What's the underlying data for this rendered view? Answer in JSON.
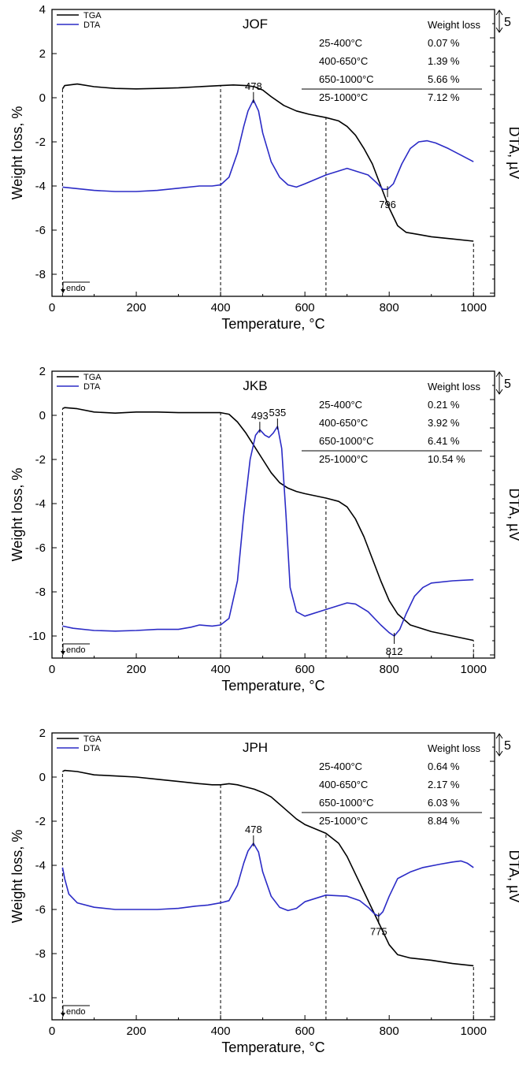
{
  "chart_data": [
    {
      "type": "line",
      "title": "JOF",
      "xlabel": "Temperature, °C",
      "ylabel": "Weight loss, %",
      "y2label": "DTA, µV",
      "scale_bar_label": "5",
      "endo_label": "endo",
      "xlim": [
        0,
        1050
      ],
      "ylim": [
        -9,
        4
      ],
      "x_ticks": [
        0,
        200,
        400,
        600,
        800,
        1000
      ],
      "y_ticks": [
        4,
        2,
        0,
        -2,
        -4,
        -6,
        -8
      ],
      "dashed_lines_x": [
        25,
        400,
        650,
        1000
      ],
      "legend": [
        {
          "label": "TGA",
          "color": "#000000"
        },
        {
          "label": "DTA",
          "color": "#2b2bc6"
        }
      ],
      "legend_position": "top-left",
      "table": {
        "header": "Weight loss",
        "rows": [
          {
            "range": "25-400°C",
            "value": "0.07 %"
          },
          {
            "range": "400-650°C",
            "value": "1.39 %"
          },
          {
            "range": "650-1000°C",
            "value": "5.66 %"
          },
          {
            "range": "25-1000°C",
            "value": "7.12 %"
          }
        ]
      },
      "peaks": [
        {
          "label": "478",
          "x": 478,
          "y": -0.1
        },
        {
          "label": "796",
          "x": 796,
          "y": -4.15
        }
      ],
      "series": [
        {
          "name": "TGA",
          "color": "#000000",
          "x": [
            25,
            30,
            60,
            100,
            150,
            200,
            250,
            300,
            350,
            400,
            430,
            460,
            480,
            500,
            520,
            550,
            580,
            610,
            650,
            680,
            700,
            720,
            740,
            760,
            780,
            800,
            820,
            840,
            870,
            900,
            950,
            1000
          ],
          "y": [
            0.4,
            0.55,
            0.62,
            0.5,
            0.42,
            0.4,
            0.42,
            0.45,
            0.5,
            0.55,
            0.58,
            0.55,
            0.5,
            0.35,
            0.05,
            -0.35,
            -0.6,
            -0.75,
            -0.9,
            -1.05,
            -1.3,
            -1.7,
            -2.3,
            -3.0,
            -4.0,
            -5.0,
            -5.8,
            -6.1,
            -6.2,
            -6.3,
            -6.4,
            -6.5
          ]
        },
        {
          "name": "DTA",
          "color": "#2b2bc6",
          "x": [
            25,
            50,
            100,
            150,
            200,
            250,
            300,
            350,
            380,
            400,
            420,
            440,
            455,
            465,
            478,
            490,
            500,
            520,
            540,
            560,
            580,
            600,
            650,
            700,
            750,
            770,
            785,
            796,
            810,
            830,
            850,
            870,
            890,
            910,
            940,
            970,
            1000
          ],
          "y": [
            -4.05,
            -4.1,
            -4.2,
            -4.25,
            -4.25,
            -4.2,
            -4.1,
            -4.0,
            -4.0,
            -3.95,
            -3.6,
            -2.5,
            -1.3,
            -0.6,
            -0.1,
            -0.6,
            -1.6,
            -2.9,
            -3.6,
            -3.95,
            -4.05,
            -3.9,
            -3.5,
            -3.2,
            -3.5,
            -3.85,
            -4.15,
            -4.15,
            -3.9,
            -3.0,
            -2.3,
            -2.0,
            -1.95,
            -2.05,
            -2.3,
            -2.6,
            -2.9
          ]
        }
      ]
    },
    {
      "type": "line",
      "title": "JKB",
      "xlabel": "Temperature, °C",
      "ylabel": "Weight loss, %",
      "y2label": "DTA, µV",
      "scale_bar_label": "5",
      "endo_label": "endo",
      "xlim": [
        0,
        1050
      ],
      "ylim": [
        -11,
        2
      ],
      "x_ticks": [
        0,
        200,
        400,
        600,
        800,
        1000
      ],
      "y_ticks": [
        2,
        0,
        -2,
        -4,
        -6,
        -8,
        -10
      ],
      "dashed_lines_x": [
        25,
        400,
        650,
        1000
      ],
      "legend": [
        {
          "label": "TGA",
          "color": "#000000"
        },
        {
          "label": "DTA",
          "color": "#2b2bc6"
        }
      ],
      "legend_position": "top-left",
      "table": {
        "header": "Weight loss",
        "rows": [
          {
            "range": "25-400°C",
            "value": "0.21 %"
          },
          {
            "range": "400-650°C",
            "value": "3.92 %"
          },
          {
            "range": "650-1000°C",
            "value": "6.41 %"
          },
          {
            "range": "25-1000°C",
            "value": "10.54 %"
          }
        ]
      },
      "peaks": [
        {
          "label": "493",
          "x": 493,
          "y": -0.65
        },
        {
          "label": "535",
          "x": 535,
          "y": -0.5
        },
        {
          "label": "812",
          "x": 812,
          "y": -10.0
        }
      ],
      "series": [
        {
          "name": "TGA",
          "color": "#000000",
          "x": [
            25,
            30,
            60,
            100,
            150,
            200,
            250,
            300,
            350,
            400,
            420,
            440,
            460,
            480,
            500,
            520,
            540,
            560,
            580,
            600,
            650,
            680,
            700,
            720,
            740,
            760,
            780,
            800,
            820,
            850,
            900,
            950,
            1000
          ],
          "y": [
            0.3,
            0.35,
            0.3,
            0.15,
            0.1,
            0.15,
            0.15,
            0.12,
            0.12,
            0.12,
            0.05,
            -0.3,
            -0.8,
            -1.4,
            -2.0,
            -2.6,
            -3.05,
            -3.3,
            -3.45,
            -3.55,
            -3.75,
            -3.9,
            -4.15,
            -4.7,
            -5.5,
            -6.5,
            -7.5,
            -8.4,
            -9.0,
            -9.5,
            -9.8,
            -10.0,
            -10.2
          ]
        },
        {
          "name": "DTA",
          "color": "#2b2bc6",
          "x": [
            25,
            50,
            100,
            150,
            200,
            250,
            300,
            330,
            350,
            380,
            400,
            420,
            440,
            455,
            470,
            483,
            493,
            505,
            515,
            525,
            535,
            545,
            555,
            565,
            580,
            600,
            650,
            700,
            720,
            750,
            780,
            800,
            812,
            825,
            840,
            860,
            880,
            900,
            950,
            1000
          ],
          "y": [
            -9.55,
            -9.65,
            -9.75,
            -9.78,
            -9.75,
            -9.7,
            -9.7,
            -9.6,
            -9.5,
            -9.55,
            -9.5,
            -9.2,
            -7.5,
            -4.5,
            -2.0,
            -0.9,
            -0.65,
            -0.9,
            -1.0,
            -0.8,
            -0.5,
            -1.5,
            -4.5,
            -7.8,
            -8.9,
            -9.1,
            -8.8,
            -8.5,
            -8.55,
            -8.9,
            -9.5,
            -9.85,
            -10.0,
            -9.7,
            -9.0,
            -8.2,
            -7.8,
            -7.6,
            -7.5,
            -7.45
          ]
        }
      ]
    },
    {
      "type": "line",
      "title": "JPH",
      "xlabel": "Temperature, °C",
      "ylabel": "Weight loss, %",
      "y2label": "DTA, µV",
      "scale_bar_label": "5",
      "endo_label": "endo",
      "xlim": [
        0,
        1050
      ],
      "ylim": [
        -11,
        2
      ],
      "x_ticks": [
        0,
        200,
        400,
        600,
        800,
        1000
      ],
      "y_ticks": [
        2,
        0,
        -2,
        -4,
        -6,
        -8,
        -10
      ],
      "dashed_lines_x": [
        25,
        400,
        650,
        1000
      ],
      "legend": [
        {
          "label": "TGA",
          "color": "#000000"
        },
        {
          "label": "DTA",
          "color": "#2b2bc6"
        }
      ],
      "legend_position": "top-left",
      "table": {
        "header": "Weight loss",
        "rows": [
          {
            "range": "25-400°C",
            "value": "0.64 %"
          },
          {
            "range": "400-650°C",
            "value": "2.17 %"
          },
          {
            "range": "650-1000°C",
            "value": "6.03 %"
          },
          {
            "range": "25-1000°C",
            "value": "8.84 %"
          }
        ]
      },
      "peaks": [
        {
          "label": "478",
          "x": 478,
          "y": -3.0
        },
        {
          "label": "775",
          "x": 775,
          "y": -6.3
        }
      ],
      "series": [
        {
          "name": "TGA",
          "color": "#000000",
          "x": [
            25,
            30,
            60,
            100,
            150,
            200,
            250,
            300,
            350,
            380,
            400,
            420,
            440,
            460,
            480,
            500,
            520,
            550,
            580,
            600,
            650,
            680,
            700,
            720,
            740,
            760,
            780,
            800,
            820,
            850,
            900,
            950,
            1000
          ],
          "y": [
            0.25,
            0.3,
            0.25,
            0.1,
            0.05,
            0.0,
            -0.1,
            -0.2,
            -0.3,
            -0.35,
            -0.35,
            -0.3,
            -0.35,
            -0.45,
            -0.55,
            -0.7,
            -0.9,
            -1.4,
            -1.9,
            -2.15,
            -2.55,
            -3.0,
            -3.6,
            -4.4,
            -5.2,
            -6.0,
            -6.8,
            -7.6,
            -8.05,
            -8.2,
            -8.3,
            -8.45,
            -8.55
          ]
        },
        {
          "name": "DTA",
          "color": "#2b2bc6",
          "x": [
            25,
            30,
            40,
            60,
            100,
            150,
            200,
            250,
            300,
            340,
            370,
            400,
            420,
            440,
            455,
            465,
            478,
            490,
            500,
            520,
            540,
            560,
            580,
            600,
            650,
            700,
            730,
            750,
            765,
            775,
            785,
            800,
            820,
            850,
            880,
            920,
            950,
            970,
            985,
            1000
          ],
          "y": [
            -4.1,
            -4.6,
            -5.3,
            -5.7,
            -5.9,
            -6.0,
            -6.0,
            -6.0,
            -5.95,
            -5.85,
            -5.8,
            -5.7,
            -5.6,
            -4.9,
            -3.9,
            -3.35,
            -3.0,
            -3.4,
            -4.3,
            -5.4,
            -5.9,
            -6.05,
            -5.95,
            -5.65,
            -5.35,
            -5.4,
            -5.6,
            -5.9,
            -6.2,
            -6.3,
            -6.1,
            -5.4,
            -4.6,
            -4.3,
            -4.1,
            -3.95,
            -3.85,
            -3.8,
            -3.9,
            -4.1
          ]
        }
      ]
    }
  ]
}
